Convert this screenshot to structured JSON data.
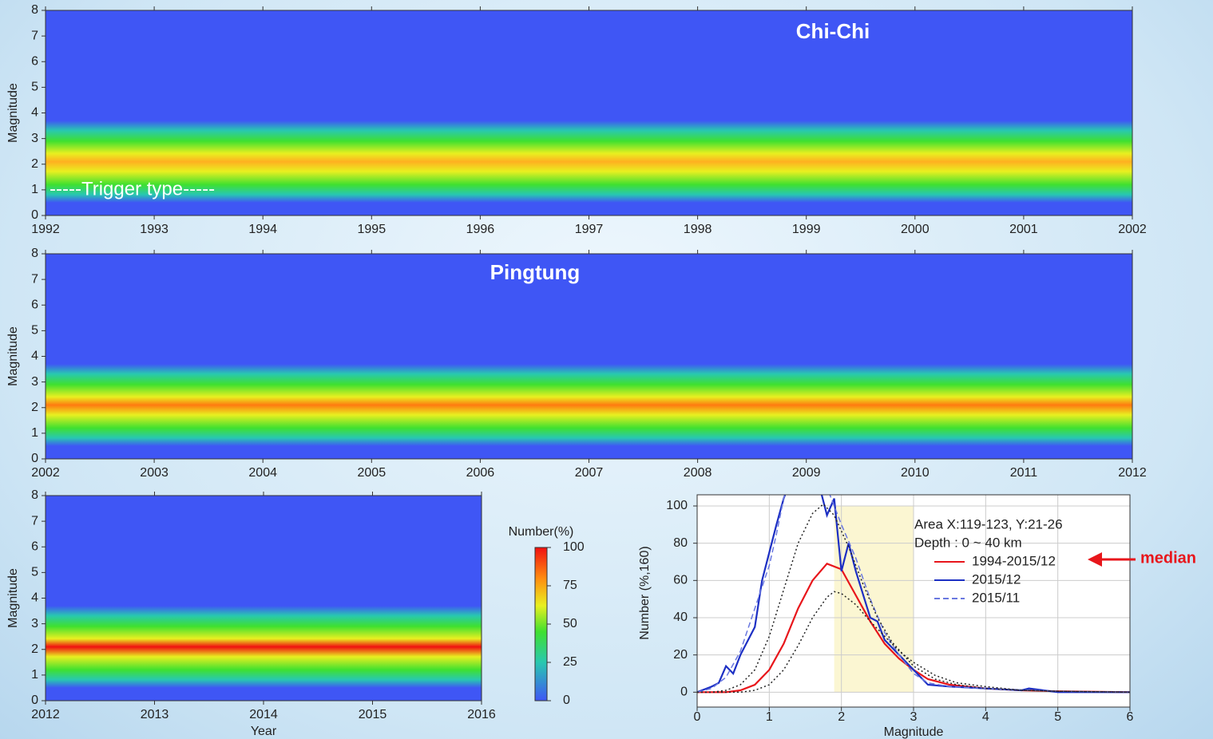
{
  "chart_data": [
    {
      "type": "heatmap",
      "ylabel": "Magnitude",
      "xlim": [
        1992,
        2002
      ],
      "xticks": [
        1992,
        1993,
        1994,
        1995,
        1996,
        1997,
        1998,
        1999,
        2000,
        2001,
        2002
      ],
      "ylim": [
        0,
        8
      ],
      "yticks": [
        0,
        1,
        2,
        3,
        4,
        5,
        6,
        7,
        8
      ],
      "annotations": [
        "Chi-Chi",
        "-----Trigger type-----"
      ]
    },
    {
      "type": "heatmap",
      "ylabel": "Magnitude",
      "xlim": [
        2002,
        2012
      ],
      "xticks": [
        2002,
        2003,
        2004,
        2005,
        2006,
        2007,
        2008,
        2009,
        2010,
        2011,
        2012
      ],
      "ylim": [
        0,
        8
      ],
      "yticks": [
        0,
        1,
        2,
        3,
        4,
        5,
        6,
        7,
        8
      ],
      "annotations": [
        "Pingtung"
      ]
    },
    {
      "type": "heatmap",
      "xlabel": "Year",
      "ylabel": "Magnitude",
      "xlim": [
        2012,
        2016
      ],
      "xticks": [
        2012,
        2013,
        2014,
        2015,
        2016
      ],
      "ylim": [
        0,
        8
      ],
      "yticks": [
        0,
        1,
        2,
        3,
        4,
        5,
        6,
        7,
        8
      ],
      "annotations": []
    },
    {
      "type": "colorbar",
      "title": "Number(%)",
      "ylim": [
        0,
        100
      ],
      "yticks": [
        0,
        25,
        50,
        75,
        100
      ]
    },
    {
      "type": "line",
      "xlabel": "Magnitude",
      "ylabel": "Number (%,160)",
      "xlim": [
        0,
        6
      ],
      "xticks": [
        0,
        1,
        2,
        3,
        4,
        5,
        6
      ],
      "ylim": [
        -8,
        106
      ],
      "yticks": [
        0,
        20,
        40,
        60,
        80,
        100
      ],
      "grid": true,
      "notes": [
        "Area X:119-123, Y:21-26",
        "Depth : 0 ~ 40 km"
      ],
      "shaded_x": [
        1.9,
        3.0
      ],
      "annotations": [
        "median"
      ],
      "series": [
        {
          "name": "1994-2015/12",
          "color": "#e8161b",
          "style": "solid",
          "x": [
            0,
            0.2,
            0.4,
            0.6,
            0.8,
            1.0,
            1.2,
            1.4,
            1.6,
            1.8,
            2.0,
            2.2,
            2.4,
            2.6,
            2.8,
            3.0,
            3.2,
            3.5,
            4.0,
            4.5,
            5.0,
            6.0
          ],
          "values": [
            0,
            0,
            0,
            1,
            4,
            12,
            26,
            45,
            60,
            69,
            66,
            52,
            38,
            26,
            18,
            12,
            7,
            4,
            2,
            1,
            0.5,
            0
          ]
        },
        {
          "name": "2015/12",
          "color": "#1c2fc4",
          "style": "solid",
          "x": [
            0,
            0.2,
            0.3,
            0.4,
            0.5,
            0.6,
            0.8,
            0.9,
            1.0,
            1.1,
            1.2,
            1.4,
            1.6,
            1.8,
            1.9,
            2.0,
            2.1,
            2.2,
            2.4,
            2.5,
            2.6,
            2.8,
            3.0,
            3.2,
            3.5,
            4.0,
            4.5,
            4.6,
            5.0,
            6.0
          ],
          "values": [
            0,
            3,
            5,
            14,
            10,
            20,
            35,
            60,
            75,
            90,
            104,
            125,
            125,
            95,
            104,
            65,
            80,
            65,
            40,
            38,
            28,
            20,
            12,
            4,
            3,
            2,
            1,
            2,
            0,
            0
          ]
        },
        {
          "name": "2015/11",
          "color": "#6a78e0",
          "style": "dashed",
          "x": [
            0,
            0.2,
            0.4,
            0.6,
            0.8,
            1.0,
            1.1,
            1.2,
            1.4,
            1.6,
            1.8,
            2.0,
            2.2,
            2.4,
            2.6,
            2.8,
            3.0,
            3.2,
            3.5,
            4.0,
            5.0,
            6.0
          ],
          "values": [
            0,
            2,
            8,
            22,
            45,
            68,
            85,
            104,
            130,
            120,
            110,
            90,
            72,
            50,
            32,
            20,
            10,
            5,
            3,
            2,
            0.5,
            0
          ]
        },
        {
          "color": "#222222",
          "style": "dotted",
          "x": [
            0,
            0.2,
            0.4,
            0.6,
            0.8,
            1.0,
            1.2,
            1.4,
            1.6,
            1.75,
            1.9,
            2.1,
            2.3,
            2.5,
            2.7,
            3.0,
            3.3,
            3.6,
            4.0,
            4.5,
            5.0,
            6.0
          ],
          "values": [
            0,
            0,
            1,
            4,
            12,
            30,
            55,
            80,
            96,
            101,
            95,
            78,
            58,
            40,
            27,
            14,
            7,
            4,
            2,
            1,
            0.5,
            0
          ]
        },
        {
          "color": "#222222",
          "style": "dotted",
          "x": [
            0,
            0.4,
            0.6,
            0.8,
            1.0,
            1.2,
            1.4,
            1.6,
            1.8,
            1.9,
            2.0,
            2.2,
            2.4,
            2.6,
            2.8,
            3.0,
            3.3,
            3.6,
            4.0,
            4.5,
            5.0,
            6.0
          ],
          "values": [
            0,
            0,
            0,
            1,
            4,
            12,
            25,
            40,
            51,
            54,
            53,
            47,
            38,
            30,
            22,
            16,
            9,
            5,
            3,
            1,
            0.5,
            0
          ]
        }
      ]
    }
  ]
}
